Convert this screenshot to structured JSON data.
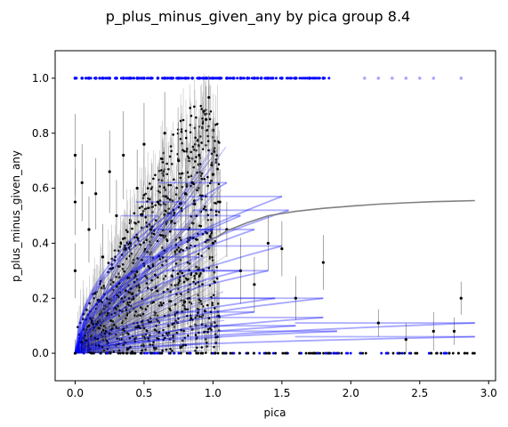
{
  "chart_data": {
    "type": "scatter",
    "title": "p_plus_minus_given_any by pica group 8.4",
    "xlabel": "pica",
    "ylabel": "p_plus_minus_given_any",
    "xlim": [
      -0.145,
      3.05
    ],
    "ylim": [
      -0.1,
      1.1
    ],
    "x_ticks": [
      0.0,
      0.5,
      1.0,
      1.5,
      2.0,
      2.5,
      3.0
    ],
    "x_tick_labels": [
      "0.0",
      "0.5",
      "1.0",
      "1.5",
      "2.0",
      "2.5",
      "3.0"
    ],
    "y_ticks": [
      0.0,
      0.2,
      0.4,
      0.6,
      0.8,
      1.0
    ],
    "y_tick_labels": [
      "0.0",
      "0.2",
      "0.4",
      "0.6",
      "0.8",
      "1.0"
    ],
    "grid": false,
    "legend": "none",
    "colors": {
      "points": "#000000",
      "error_bars": "#808080",
      "fits": "#0000ff",
      "marginal_points": "#0000ff",
      "overall_fit": "#808080"
    },
    "overall_fit": {
      "x": [
        0.95,
        1.1,
        1.25,
        1.4,
        1.6,
        1.8,
        2.0,
        2.2,
        2.4,
        2.6,
        2.9
      ],
      "y": [
        0.4,
        0.445,
        0.475,
        0.5,
        0.516,
        0.527,
        0.535,
        0.542,
        0.547,
        0.551,
        0.555
      ]
    },
    "group_fits_at_max_pica": [
      {
        "x": [
          0.0,
          1.5
        ],
        "y": [
          0.0,
          0.57
        ]
      },
      {
        "x": [
          0.0,
          1.55
        ],
        "y": [
          0.0,
          0.52
        ]
      },
      {
        "x": [
          0.0,
          1.5
        ],
        "y": [
          0.0,
          0.39
        ]
      },
      {
        "x": [
          0.0,
          1.8
        ],
        "y": [
          0.0,
          0.2
        ]
      },
      {
        "x": [
          0.0,
          1.8
        ],
        "y": [
          0.0,
          0.13
        ]
      },
      {
        "x": [
          0.0,
          2.9
        ],
        "y": [
          0.0,
          0.11
        ]
      },
      {
        "x": [
          0.0,
          1.9
        ],
        "y": [
          0.0,
          0.08
        ]
      },
      {
        "x": [
          0.0,
          2.9
        ],
        "y": [
          0.0,
          0.06
        ]
      },
      {
        "x": [
          0.0,
          1.1
        ],
        "y": [
          0.0,
          0.62
        ]
      },
      {
        "x": [
          0.0,
          1.2
        ],
        "y": [
          0.0,
          0.5
        ]
      },
      {
        "x": [
          0.0,
          1.3
        ],
        "y": [
          0.0,
          0.45
        ]
      },
      {
        "x": [
          0.0,
          1.4
        ],
        "y": [
          0.0,
          0.3
        ]
      },
      {
        "x": [
          0.0,
          1.45
        ],
        "y": [
          0.0,
          0.2
        ]
      },
      {
        "x": [
          0.0,
          1.2
        ],
        "y": [
          0.0,
          0.3
        ]
      },
      {
        "x": [
          0.0,
          1.3
        ],
        "y": [
          0.0,
          0.15
        ]
      },
      {
        "x": [
          0.0,
          1.6
        ],
        "y": [
          0.0,
          0.1
        ]
      },
      {
        "x": [
          0.0,
          1.0
        ],
        "y": [
          0.0,
          0.45
        ]
      },
      {
        "x": [
          0.0,
          0.9
        ],
        "y": [
          0.0,
          0.35
        ]
      },
      {
        "x": [
          0.0,
          0.8
        ],
        "y": [
          0.0,
          0.55
        ]
      },
      {
        "x": [
          0.0,
          0.6
        ],
        "y": [
          0.0,
          0.5
        ]
      }
    ],
    "marginal_points_at_one": {
      "x": [
        0.0,
        0.05,
        0.1,
        0.15,
        0.2,
        0.25,
        0.3,
        0.35,
        0.4,
        0.45,
        0.5,
        0.55,
        0.6,
        0.65,
        0.7,
        0.75,
        0.8,
        0.85,
        0.9,
        0.95,
        1.0,
        1.05,
        1.1,
        1.15,
        1.2,
        1.25,
        1.3,
        1.35,
        1.4,
        1.5,
        1.6,
        1.7,
        1.8,
        2.1,
        2.2,
        2.3,
        2.4,
        2.5,
        2.6,
        2.8
      ],
      "y": 1.0
    },
    "sample_points": {
      "x": [
        0.0,
        0.0,
        0.0,
        0.0,
        0.05,
        0.1,
        0.1,
        0.15,
        0.2,
        0.25,
        0.3,
        0.35,
        0.4,
        0.45,
        0.5,
        0.55,
        0.6,
        0.65,
        0.7,
        0.75,
        0.8,
        0.85,
        0.9,
        0.95,
        0.97,
        1.0,
        1.0,
        1.05,
        1.1,
        1.2,
        1.3,
        1.4,
        1.5,
        1.6,
        1.8,
        2.2,
        2.4,
        2.6,
        2.75,
        2.8
      ],
      "y": [
        0.72,
        0.55,
        0.3,
        0.0,
        0.62,
        0.45,
        0.1,
        0.58,
        0.35,
        0.66,
        0.5,
        0.72,
        0.4,
        0.6,
        0.76,
        0.45,
        0.55,
        0.8,
        0.48,
        0.7,
        0.58,
        0.62,
        0.72,
        0.85,
        0.93,
        0.65,
        0.4,
        0.55,
        0.45,
        0.3,
        0.25,
        0.4,
        0.38,
        0.2,
        0.33,
        0.11,
        0.05,
        0.08,
        0.08,
        0.2
      ],
      "err": [
        0.15,
        0.12,
        0.1,
        0.05,
        0.14,
        0.12,
        0.06,
        0.13,
        0.12,
        0.15,
        0.13,
        0.16,
        0.12,
        0.14,
        0.15,
        0.12,
        0.13,
        0.15,
        0.12,
        0.14,
        0.13,
        0.13,
        0.14,
        0.12,
        0.08,
        0.2,
        0.15,
        0.12,
        0.1,
        0.12,
        0.1,
        0.1,
        0.1,
        0.08,
        0.1,
        0.05,
        0.06,
        0.07,
        0.05,
        0.06
      ]
    }
  }
}
